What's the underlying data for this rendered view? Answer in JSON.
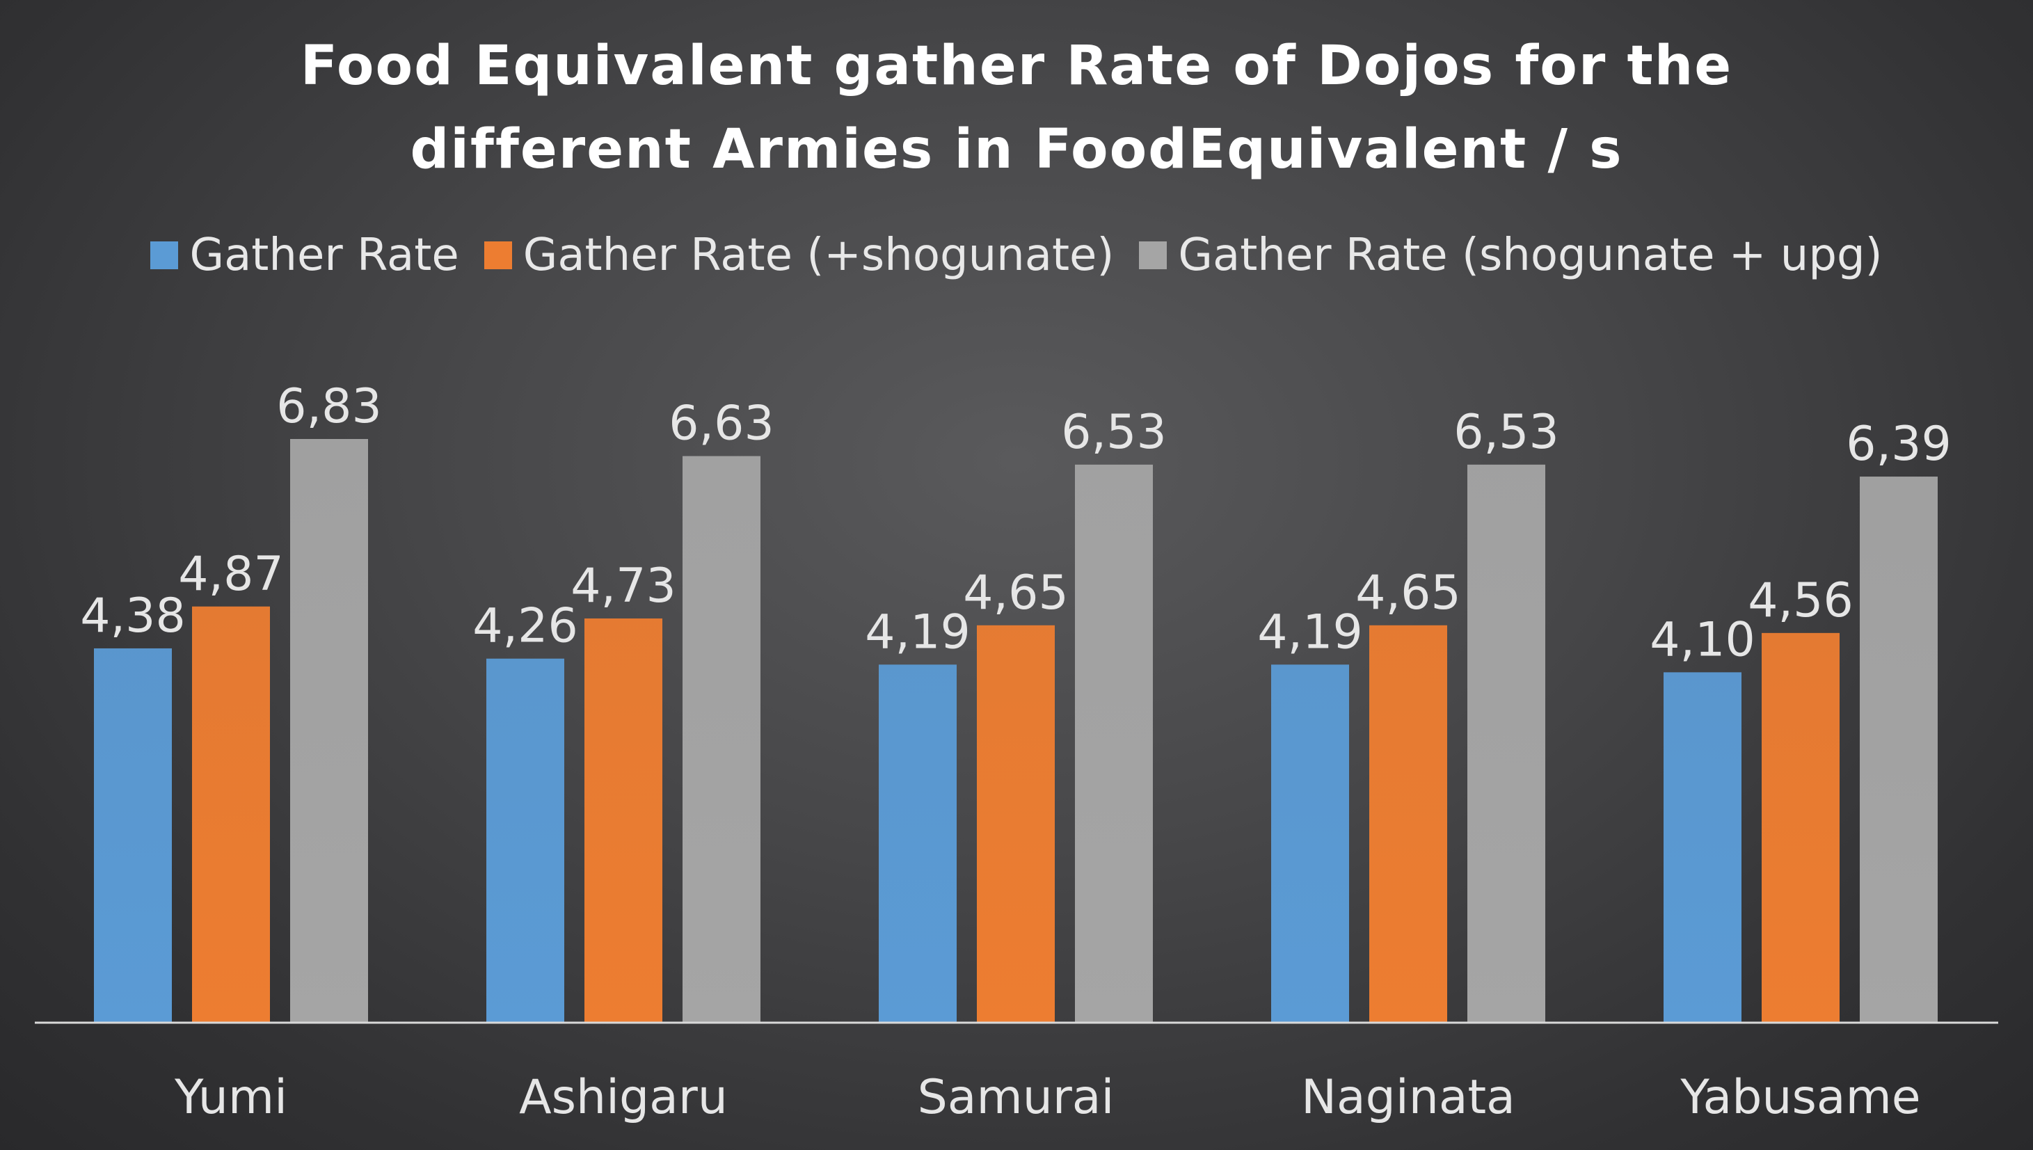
{
  "chart_data": {
    "type": "bar",
    "title_lines": [
      "Food Equivalent gather Rate of Dojos for the",
      "different Armies in FoodEquivalent / s"
    ],
    "categories": [
      "Yumi",
      "Ashigaru",
      "Samurai",
      "Naginata",
      "Yabusame"
    ],
    "series": [
      {
        "name": "Gather Rate",
        "color": "#5b9bd5",
        "values": [
          4.38,
          4.26,
          4.19,
          4.19,
          4.1
        ],
        "labels": [
          "4,38",
          "4,26",
          "4,19",
          "4,19",
          "4,10"
        ]
      },
      {
        "name": "Gather Rate (+shogunate)",
        "color": "#ed7d31",
        "values": [
          4.87,
          4.73,
          4.65,
          4.65,
          4.56
        ],
        "labels": [
          "4,87",
          "4,73",
          "4,65",
          "4,65",
          "4,56"
        ]
      },
      {
        "name": "Gather Rate (shogunate + upg)",
        "color": "#a5a5a5",
        "values": [
          6.83,
          6.63,
          6.53,
          6.53,
          6.39
        ],
        "labels": [
          "6,83",
          "6,63",
          "6,53",
          "6,53",
          "6,39"
        ]
      }
    ],
    "ylim": [
      0,
      7.0
    ],
    "grid": false,
    "legend": "top",
    "axis_color": "#d9d9d9"
  }
}
